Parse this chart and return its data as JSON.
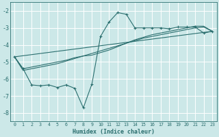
{
  "xlabel": "Humidex (Indice chaleur)",
  "background_color": "#cce8e8",
  "grid_color": "#ffffff",
  "line_color": "#2a6e6e",
  "xlim": [
    -0.5,
    23.5
  ],
  "ylim": [
    -8.5,
    -1.5
  ],
  "yticks": [
    -8,
    -7,
    -6,
    -5,
    -4,
    -3,
    -2
  ],
  "xticks": [
    0,
    1,
    2,
    3,
    4,
    5,
    6,
    7,
    8,
    9,
    10,
    11,
    12,
    13,
    14,
    15,
    16,
    17,
    18,
    19,
    20,
    21,
    22,
    23
  ],
  "series1_x": [
    0,
    1,
    2,
    3,
    4,
    5,
    6,
    7,
    8,
    9,
    10,
    11,
    12,
    13,
    14,
    15,
    16,
    17,
    18,
    19,
    20,
    21,
    22,
    23
  ],
  "series1_y": [
    -4.7,
    -5.4,
    -6.35,
    -6.4,
    -6.35,
    -6.5,
    -6.35,
    -6.55,
    -7.7,
    -6.3,
    -3.5,
    -2.65,
    -2.1,
    -2.2,
    -3.0,
    -3.0,
    -3.0,
    -3.0,
    -3.05,
    -2.95,
    -2.95,
    -2.95,
    -3.3,
    -3.2
  ],
  "series2_x": [
    0,
    1,
    2,
    3,
    4,
    5,
    6,
    7,
    8,
    9,
    10,
    11,
    12,
    13,
    14,
    15,
    16,
    17,
    18,
    19,
    20,
    21,
    22,
    23
  ],
  "series2_y": [
    -4.7,
    -5.4,
    -5.3,
    -5.2,
    -5.1,
    -5.0,
    -4.9,
    -4.75,
    -4.65,
    -4.5,
    -4.35,
    -4.2,
    -4.05,
    -3.9,
    -3.75,
    -3.6,
    -3.5,
    -3.4,
    -3.3,
    -3.2,
    -3.1,
    -3.0,
    -2.95,
    -3.2
  ],
  "series3_x": [
    0,
    1,
    2,
    3,
    4,
    5,
    6,
    7,
    8,
    9,
    10,
    11,
    12,
    13,
    14,
    15,
    16,
    17,
    18,
    19,
    20,
    21,
    22,
    23
  ],
  "series3_y": [
    -4.7,
    -5.5,
    -5.4,
    -5.3,
    -5.2,
    -5.1,
    -4.95,
    -4.8,
    -4.65,
    -4.6,
    -4.45,
    -4.3,
    -4.1,
    -3.9,
    -3.7,
    -3.55,
    -3.4,
    -3.3,
    -3.2,
    -3.1,
    -3.0,
    -2.9,
    -2.9,
    -3.2
  ],
  "series4_x": [
    0,
    23
  ],
  "series4_y": [
    -4.7,
    -3.2
  ]
}
